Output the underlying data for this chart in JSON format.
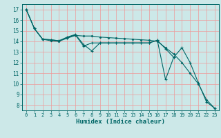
{
  "xlabel": "Humidex (Indice chaleur)",
  "background_color": "#cce8e8",
  "grid_color": "#ee9999",
  "line_color": "#006666",
  "xlim": [
    -0.5,
    23.5
  ],
  "ylim": [
    7.5,
    17.5
  ],
  "xticks": [
    0,
    1,
    2,
    3,
    4,
    5,
    6,
    7,
    8,
    9,
    10,
    11,
    12,
    13,
    14,
    15,
    16,
    17,
    18,
    19,
    20,
    21,
    22,
    23
  ],
  "yticks": [
    8,
    9,
    10,
    11,
    12,
    13,
    14,
    15,
    16,
    17
  ],
  "s1_x": [
    0,
    1,
    2,
    3,
    4,
    5,
    6,
    7,
    8,
    9,
    10,
    11,
    12,
    13,
    14,
    15,
    16,
    17,
    18
  ],
  "s1_y": [
    17.0,
    15.2,
    14.2,
    14.15,
    14.05,
    14.4,
    14.65,
    13.7,
    13.1,
    13.85,
    13.85,
    13.85,
    13.85,
    13.85,
    13.85,
    13.85,
    14.1,
    13.3,
    12.5
  ],
  "s2_x": [
    0,
    1,
    2,
    3,
    4,
    5,
    6,
    7,
    8,
    9,
    10,
    11,
    12,
    13,
    14,
    15,
    16,
    17,
    18,
    19,
    20,
    21,
    22,
    23
  ],
  "s2_y": [
    17.0,
    15.2,
    14.2,
    14.15,
    14.05,
    14.35,
    14.6,
    13.55,
    13.85,
    13.85,
    13.85,
    13.85,
    13.85,
    13.85,
    13.85,
    13.85,
    14.1,
    10.4,
    12.5,
    13.4,
    12.0,
    10.1,
    8.3,
    7.7
  ],
  "s3_x": [
    0,
    1,
    2,
    3,
    4,
    5,
    6,
    7,
    8,
    9,
    10,
    11,
    12,
    13,
    14,
    15,
    16,
    17,
    18,
    19,
    20,
    21,
    22,
    23
  ],
  "s3_y": [
    17.0,
    15.2,
    14.2,
    14.05,
    14.0,
    14.3,
    14.55,
    14.5,
    14.5,
    14.4,
    14.35,
    14.3,
    14.25,
    14.2,
    14.15,
    14.1,
    14.0,
    13.4,
    12.8,
    12.0,
    11.0,
    10.0,
    8.5,
    7.7
  ]
}
